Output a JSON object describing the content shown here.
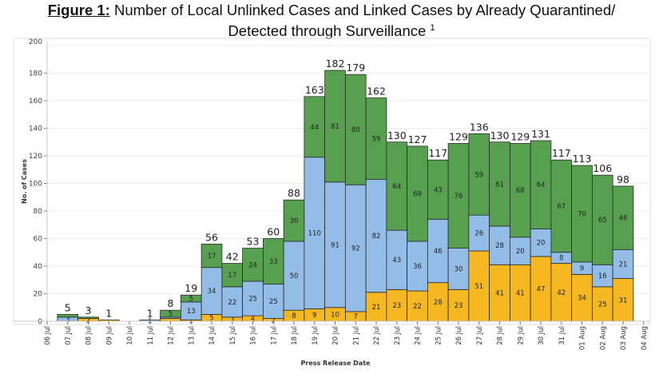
{
  "title": {
    "figure_label": "Figure 1:",
    "line1": " Number of Local Unlinked Cases and Linked Cases by Already Quarantined/",
    "line2": "Detected through Surveillance",
    "footnote_marker": "1"
  },
  "colors": {
    "yellow": "#f5b821",
    "blue": "#93bde6",
    "green": "#57a050",
    "grid": "#ececec",
    "axis": "#c8c8c8"
  },
  "chart_data": {
    "type": "bar",
    "stacked": true,
    "title": "Number of Local Unlinked Cases and Linked Cases by Already Quarantined/ Detected through Surveillance",
    "xlabel": "Press Release Date",
    "ylabel": "No. of Cases",
    "ylim": [
      0,
      200
    ],
    "yticks": [
      0,
      20,
      40,
      60,
      80,
      100,
      120,
      140,
      160,
      180,
      200
    ],
    "grid": true,
    "legend": "none",
    "categories": [
      "06 Jul",
      "07 Jul",
      "08 Jul",
      "09 Jul",
      "10 Jul",
      "11 Jul",
      "12 Jul",
      "13 Jul",
      "14 Jul",
      "15 Jul",
      "16 Jul",
      "17 Jul",
      "18 Jul",
      "19 Jul",
      "20 Jul",
      "21 Jul",
      "22 Jul",
      "23 Jul",
      "24 Jul",
      "25 Jul",
      "26 Jul",
      "27 Jul",
      "28 Jul",
      "29 Jul",
      "30 Jul",
      "31 Jul",
      "01 Aug",
      "02 Aug",
      "03 Aug",
      "04 Aug"
    ],
    "series": [
      {
        "name": "yellow",
        "color_key": "yellow",
        "values": [
          0,
          0,
          2,
          1,
          0,
          0,
          2,
          1,
          5,
          3,
          4,
          2,
          8,
          9,
          10,
          7,
          21,
          23,
          22,
          28,
          23,
          51,
          41,
          41,
          47,
          42,
          34,
          25,
          31,
          0
        ],
        "labels": [
          null,
          null,
          "2",
          null,
          null,
          null,
          null,
          "1",
          "5",
          "3",
          "4",
          "2",
          "8",
          "9",
          "10",
          "7",
          "21",
          "23",
          "22",
          "28",
          "23",
          "51",
          "41",
          "41",
          "47",
          "42",
          "34",
          "25",
          "31",
          null
        ]
      },
      {
        "name": "blue",
        "color_key": "blue",
        "values": [
          0,
          3,
          0,
          0,
          0,
          1,
          1,
          13,
          34,
          22,
          25,
          25,
          50,
          110,
          91,
          92,
          82,
          43,
          36,
          46,
          30,
          26,
          28,
          20,
          20,
          8,
          9,
          16,
          21,
          0
        ],
        "labels": [
          null,
          "3",
          null,
          null,
          null,
          "1",
          null,
          "13",
          "34",
          "22",
          "25",
          "25",
          "50",
          "110",
          "91",
          "92",
          "82",
          "43",
          "36",
          "46",
          "30",
          "26",
          "28",
          "20",
          "20",
          "8",
          "9",
          "16",
          "21",
          null
        ]
      },
      {
        "name": "green",
        "color_key": "green",
        "values": [
          0,
          2,
          1,
          0,
          0,
          0,
          5,
          5,
          17,
          17,
          24,
          33,
          30,
          44,
          81,
          80,
          59,
          64,
          69,
          43,
          76,
          59,
          61,
          68,
          64,
          67,
          70,
          65,
          46,
          0
        ],
        "labels": [
          null,
          null,
          null,
          null,
          null,
          null,
          "5",
          "5",
          "17",
          "17",
          "24",
          "33",
          "30",
          "44",
          "81",
          "80",
          "59",
          "64",
          "69",
          "43",
          "76",
          "59",
          "61",
          "68",
          "64",
          "67",
          "70",
          "65",
          "46",
          null
        ]
      }
    ],
    "totals": [
      null,
      "5",
      "3",
      "1",
      null,
      "1",
      "8",
      "19",
      "56",
      "42",
      "53",
      "60",
      "88",
      "163",
      "182",
      "179",
      "162",
      "130",
      "127",
      "117",
      "129",
      "136",
      "130",
      "129",
      "131",
      "117",
      "113",
      "106",
      "98",
      null
    ]
  }
}
